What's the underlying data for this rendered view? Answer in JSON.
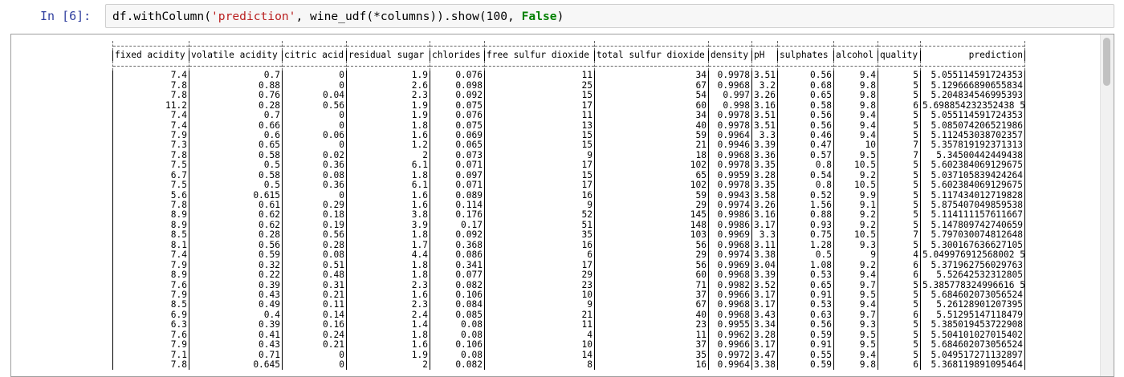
{
  "cell": {
    "prompt": "In [6]:",
    "code_prefix": "df.withColumn(",
    "code_string": "'prediction'",
    "code_middle": ", wine_udf(*columns)).show(100, ",
    "code_keyword": "False",
    "code_suffix": ")"
  },
  "table": {
    "headers": [
      "fixed acidity",
      "volatile acidity",
      "citric acid",
      "residual sugar",
      "chlorides",
      "free sulfur dioxide",
      "total sulfur dioxide",
      "density",
      "pH",
      "sulphates",
      "alcohol",
      "quality",
      "prediction"
    ],
    "rows": [
      [
        "7.4",
        "0.7",
        "0",
        "1.9",
        "0.076",
        "11",
        "34",
        "0.9978",
        "3.51",
        "0.56",
        "9.4",
        "5",
        "5.055114591724353"
      ],
      [
        "7.8",
        "0.88",
        "0",
        "2.6",
        "0.098",
        "25",
        "67",
        "0.9968",
        "3.2",
        "0.68",
        "9.8",
        "5",
        "5.129666890655834"
      ],
      [
        "7.8",
        "0.76",
        "0.04",
        "2.3",
        "0.092",
        "15",
        "54",
        "0.997",
        "3.26",
        "0.65",
        "9.8",
        "5",
        "5.204834546995393"
      ],
      [
        "11.2",
        "0.28",
        "0.56",
        "1.9",
        "0.075",
        "17",
        "60",
        "0.998",
        "3.16",
        "0.58",
        "9.8",
        "6",
        "5.698854232352438 5"
      ],
      [
        "7.4",
        "0.7",
        "0",
        "1.9",
        "0.076",
        "11",
        "34",
        "0.9978",
        "3.51",
        "0.56",
        "9.4",
        "5",
        "5.055114591724353"
      ],
      [
        "7.4",
        "0.66",
        "0",
        "1.8",
        "0.075",
        "13",
        "40",
        "0.9978",
        "3.51",
        "0.56",
        "9.4",
        "5",
        "5.085074206521986"
      ],
      [
        "7.9",
        "0.6",
        "0.06",
        "1.6",
        "0.069",
        "15",
        "59",
        "0.9964",
        "3.3",
        "0.46",
        "9.4",
        "5",
        "5.112453038702357"
      ],
      [
        "7.3",
        "0.65",
        "0",
        "1.2",
        "0.065",
        "15",
        "21",
        "0.9946",
        "3.39",
        "0.47",
        "10",
        "7",
        "5.357819192371313"
      ],
      [
        "7.8",
        "0.58",
        "0.02",
        "2",
        "0.073",
        "9",
        "18",
        "0.9968",
        "3.36",
        "0.57",
        "9.5",
        "7",
        "5.34500442449438"
      ],
      [
        "7.5",
        "0.5",
        "0.36",
        "6.1",
        "0.071",
        "17",
        "102",
        "0.9978",
        "3.35",
        "0.8",
        "10.5",
        "5",
        "5.602384069129675"
      ],
      [
        "6.7",
        "0.58",
        "0.08",
        "1.8",
        "0.097",
        "15",
        "65",
        "0.9959",
        "3.28",
        "0.54",
        "9.2",
        "5",
        "5.037105839424264"
      ],
      [
        "7.5",
        "0.5",
        "0.36",
        "6.1",
        "0.071",
        "17",
        "102",
        "0.9978",
        "3.35",
        "0.8",
        "10.5",
        "5",
        "5.602384069129675"
      ],
      [
        "5.6",
        "0.615",
        "0",
        "1.6",
        "0.089",
        "16",
        "59",
        "0.9943",
        "3.58",
        "0.52",
        "9.9",
        "5",
        "5.117434012719828"
      ],
      [
        "7.8",
        "0.61",
        "0.29",
        "1.6",
        "0.114",
        "9",
        "29",
        "0.9974",
        "3.26",
        "1.56",
        "9.1",
        "5",
        "5.875407049859538"
      ],
      [
        "8.9",
        "0.62",
        "0.18",
        "3.8",
        "0.176",
        "52",
        "145",
        "0.9986",
        "3.16",
        "0.88",
        "9.2",
        "5",
        "5.114111157611667"
      ],
      [
        "8.9",
        "0.62",
        "0.19",
        "3.9",
        "0.17",
        "51",
        "148",
        "0.9986",
        "3.17",
        "0.93",
        "9.2",
        "5",
        "5.147809742740659"
      ],
      [
        "8.5",
        "0.28",
        "0.56",
        "1.8",
        "0.092",
        "35",
        "103",
        "0.9969",
        "3.3",
        "0.75",
        "10.5",
        "7",
        "5.797030074812648"
      ],
      [
        "8.1",
        "0.56",
        "0.28",
        "1.7",
        "0.368",
        "16",
        "56",
        "0.9968",
        "3.11",
        "1.28",
        "9.3",
        "5",
        "5.300167636627105"
      ],
      [
        "7.4",
        "0.59",
        "0.08",
        "4.4",
        "0.086",
        "6",
        "29",
        "0.9974",
        "3.38",
        "0.5",
        "9",
        "4",
        "5.049976912568002 5"
      ],
      [
        "7.9",
        "0.32",
        "0.51",
        "1.8",
        "0.341",
        "17",
        "56",
        "0.9969",
        "3.04",
        "1.08",
        "9.2",
        "6",
        "5.371962756029763"
      ],
      [
        "8.9",
        "0.22",
        "0.48",
        "1.8",
        "0.077",
        "29",
        "60",
        "0.9968",
        "3.39",
        "0.53",
        "9.4",
        "6",
        "5.52642532312805"
      ],
      [
        "7.6",
        "0.39",
        "0.31",
        "2.3",
        "0.082",
        "23",
        "71",
        "0.9982",
        "3.52",
        "0.65",
        "9.7",
        "5",
        "5.385778324996616 5"
      ],
      [
        "7.9",
        "0.43",
        "0.21",
        "1.6",
        "0.106",
        "10",
        "37",
        "0.9966",
        "3.17",
        "0.91",
        "9.5",
        "5",
        "5.684602073056524"
      ],
      [
        "8.5",
        "0.49",
        "0.11",
        "2.3",
        "0.084",
        "9",
        "67",
        "0.9968",
        "3.17",
        "0.53",
        "9.4",
        "5",
        "5.26128901207395"
      ],
      [
        "6.9",
        "0.4",
        "0.14",
        "2.4",
        "0.085",
        "21",
        "40",
        "0.9968",
        "3.43",
        "0.63",
        "9.7",
        "6",
        "5.51295147118479"
      ],
      [
        "6.3",
        "0.39",
        "0.16",
        "1.4",
        "0.08",
        "11",
        "23",
        "0.9955",
        "3.34",
        "0.56",
        "9.3",
        "5",
        "5.385019453722908"
      ],
      [
        "7.6",
        "0.41",
        "0.24",
        "1.8",
        "0.08",
        "4",
        "11",
        "0.9962",
        "3.28",
        "0.59",
        "9.5",
        "5",
        "5.504101027015402"
      ],
      [
        "7.9",
        "0.43",
        "0.21",
        "1.6",
        "0.106",
        "10",
        "37",
        "0.9966",
        "3.17",
        "0.91",
        "9.5",
        "5",
        "5.684602073056524"
      ],
      [
        "7.1",
        "0.71",
        "0",
        "1.9",
        "0.08",
        "14",
        "35",
        "0.9972",
        "3.47",
        "0.55",
        "9.4",
        "5",
        "5.049517271132897"
      ],
      [
        "7.8",
        "0.645",
        "0",
        "2",
        "0.082",
        "8",
        "16",
        "0.9964",
        "3.38",
        "0.59",
        "9.8",
        "6",
        "5.368119891095464"
      ]
    ]
  }
}
